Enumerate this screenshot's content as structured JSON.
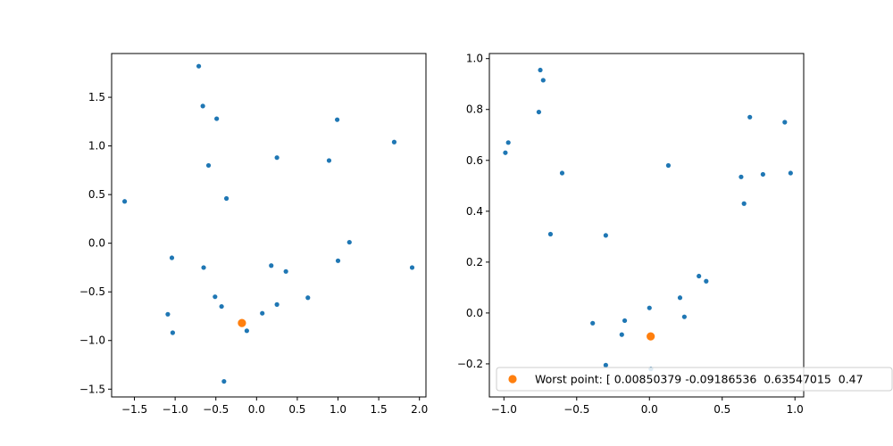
{
  "colors": {
    "points": "#1f77b4",
    "worst": "#ff7f0e",
    "axes": "#000000",
    "legend_border": "#cccccc"
  },
  "chart_data": [
    {
      "type": "scatter",
      "xlim": [
        -1.78,
        2.08
      ],
      "ylim": [
        -1.58,
        1.95
      ],
      "xticks": [
        -1.5,
        -1.0,
        -0.5,
        0.0,
        0.5,
        1.0,
        1.5,
        2.0
      ],
      "yticks": [
        -1.5,
        -1.0,
        -0.5,
        0.0,
        0.5,
        1.0,
        1.5
      ],
      "xtick_labels": [
        "−1.5",
        "−1.0",
        "−0.5",
        "0.0",
        "0.5",
        "1.0",
        "1.5",
        "2.0"
      ],
      "ytick_labels": [
        "−1.5",
        "−1.0",
        "−0.5",
        "0.0",
        "0.5",
        "1.0",
        "1.5"
      ],
      "points": [
        {
          "x": -0.71,
          "y": 1.82
        },
        {
          "x": -0.66,
          "y": 1.41
        },
        {
          "x": -0.49,
          "y": 1.28
        },
        {
          "x": 0.99,
          "y": 1.27
        },
        {
          "x": 1.69,
          "y": 1.04
        },
        {
          "x": 0.25,
          "y": 0.88
        },
        {
          "x": 0.89,
          "y": 0.85
        },
        {
          "x": -0.59,
          "y": 0.8
        },
        {
          "x": -1.62,
          "y": 0.43
        },
        {
          "x": -0.37,
          "y": 0.46
        },
        {
          "x": 1.14,
          "y": 0.01
        },
        {
          "x": -1.04,
          "y": -0.15
        },
        {
          "x": 1.0,
          "y": -0.18
        },
        {
          "x": -0.65,
          "y": -0.25
        },
        {
          "x": 0.18,
          "y": -0.23
        },
        {
          "x": 1.91,
          "y": -0.25
        },
        {
          "x": 0.36,
          "y": -0.29
        },
        {
          "x": -0.51,
          "y": -0.55
        },
        {
          "x": 0.63,
          "y": -0.56
        },
        {
          "x": 0.25,
          "y": -0.63
        },
        {
          "x": -0.43,
          "y": -0.65
        },
        {
          "x": -1.09,
          "y": -0.73
        },
        {
          "x": 0.07,
          "y": -0.72
        },
        {
          "x": -1.03,
          "y": -0.92
        },
        {
          "x": -0.12,
          "y": -0.9
        },
        {
          "x": -0.4,
          "y": -1.42
        }
      ],
      "worst_point": {
        "x": -0.18,
        "y": -0.82
      }
    },
    {
      "type": "scatter",
      "xlim": [
        -1.1,
        1.06
      ],
      "ylim": [
        -0.33,
        1.02
      ],
      "xticks": [
        -1.0,
        -0.5,
        0.0,
        0.5,
        1.0
      ],
      "yticks": [
        -0.2,
        0.0,
        0.2,
        0.4,
        0.6,
        0.8,
        1.0
      ],
      "xtick_labels": [
        "−1.0",
        "−0.5",
        "0.0",
        "0.5",
        "1.0"
      ],
      "ytick_labels": [
        "−0.2",
        "0.0",
        "0.2",
        "0.4",
        "0.6",
        "0.8",
        "1.0"
      ],
      "points": [
        {
          "x": -0.75,
          "y": 0.955
        },
        {
          "x": -0.73,
          "y": 0.915
        },
        {
          "x": -0.76,
          "y": 0.79
        },
        {
          "x": 0.69,
          "y": 0.77
        },
        {
          "x": 0.93,
          "y": 0.75
        },
        {
          "x": -0.97,
          "y": 0.67
        },
        {
          "x": -0.99,
          "y": 0.63
        },
        {
          "x": 0.13,
          "y": 0.58
        },
        {
          "x": -0.6,
          "y": 0.55
        },
        {
          "x": 0.97,
          "y": 0.55
        },
        {
          "x": 0.78,
          "y": 0.545
        },
        {
          "x": 0.63,
          "y": 0.535
        },
        {
          "x": 0.65,
          "y": 0.43
        },
        {
          "x": -0.68,
          "y": 0.31
        },
        {
          "x": -0.3,
          "y": 0.305
        },
        {
          "x": 0.34,
          "y": 0.145
        },
        {
          "x": 0.39,
          "y": 0.125
        },
        {
          "x": 0.21,
          "y": 0.06
        },
        {
          "x": 0.0,
          "y": 0.02
        },
        {
          "x": 0.24,
          "y": -0.015
        },
        {
          "x": -0.39,
          "y": -0.04
        },
        {
          "x": -0.17,
          "y": -0.03
        },
        {
          "x": -0.19,
          "y": -0.085
        },
        {
          "x": -0.3,
          "y": -0.205
        },
        {
          "x": 0.01,
          "y": -0.22
        }
      ],
      "worst_point": {
        "x": 0.0085,
        "y": -0.092
      },
      "legend": {
        "placement": "lower-right",
        "label": "Worst point: [ 0.00850379 -0.09186536  0.63547015  0.47"
      }
    }
  ]
}
